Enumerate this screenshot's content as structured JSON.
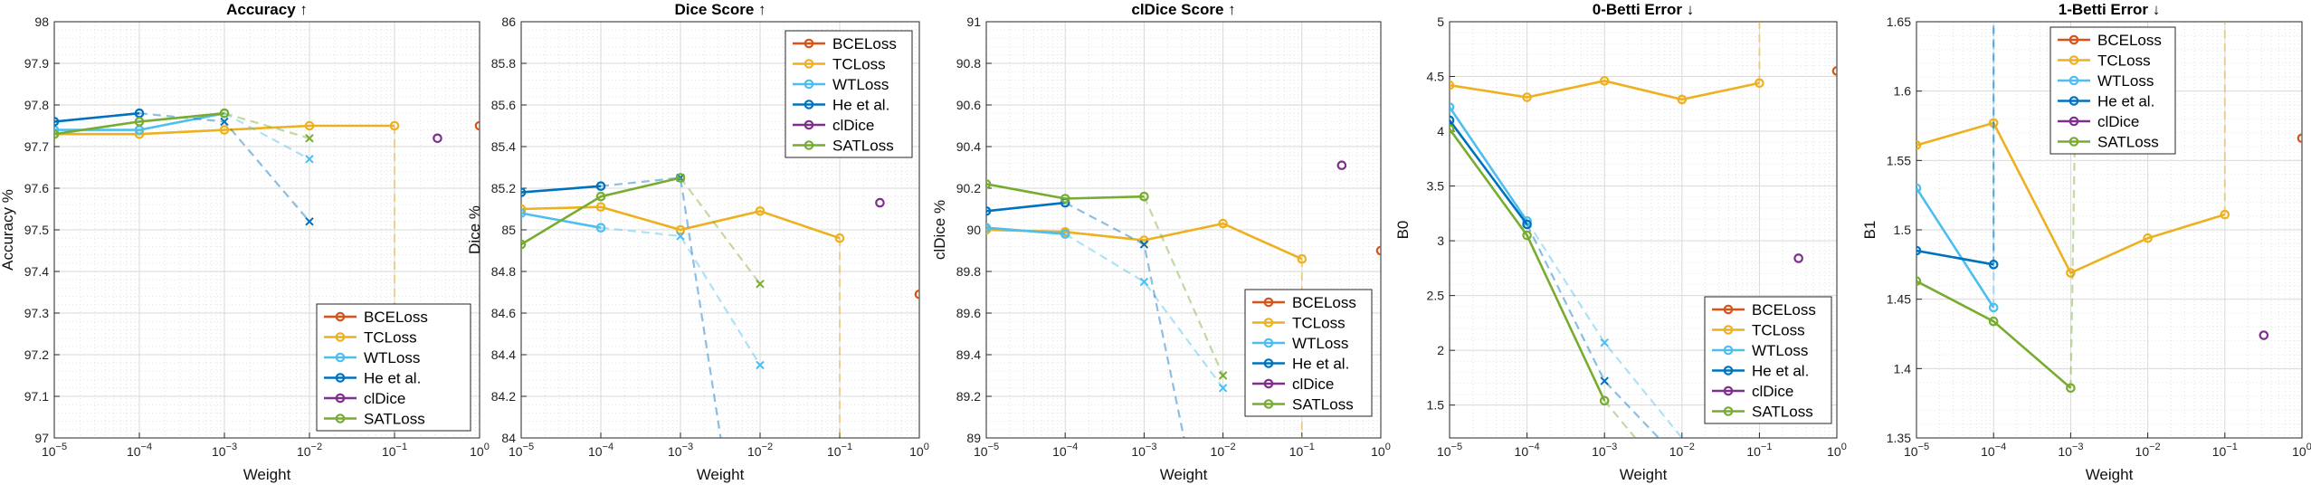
{
  "figure": {
    "xlabel": "Weight",
    "colors": {
      "BCELoss": "#D95319",
      "TCLoss": "#EDB120",
      "WTLoss": "#4DBEEE",
      "He et al.": "#0072BD",
      "clDice": "#7E2F8E",
      "SATLoss": "#77AC30"
    }
  },
  "chart_data": [
    {
      "type": "line",
      "title": "Accuracy ↑",
      "xlabel": "Weight",
      "ylabel": "Accuracy %",
      "xscale": "log",
      "xlim": [
        1e-05,
        1
      ],
      "ylim": [
        97,
        98
      ],
      "yticks": [
        97,
        97.1,
        97.2,
        97.3,
        97.4,
        97.5,
        97.6,
        97.7,
        97.8,
        97.9,
        98
      ],
      "grid": true,
      "legend": "bottom-right",
      "series": [
        {
          "name": "BCELoss",
          "points": [
            [
              1,
              97.75
            ]
          ]
        },
        {
          "name": "TCLoss",
          "points": [
            [
              1e-05,
              97.73
            ],
            [
              0.0001,
              97.73
            ],
            [
              0.001,
              97.74
            ],
            [
              0.01,
              97.75
            ],
            [
              0.1,
              97.75
            ]
          ],
          "collapse": [
            [
              0.1,
              97.75
            ],
            [
              0.1,
              97.0
            ]
          ]
        },
        {
          "name": "WTLoss",
          "points": [
            [
              1e-05,
              97.74
            ],
            [
              0.0001,
              97.74
            ],
            [
              0.001,
              97.78
            ]
          ],
          "collapse": [
            [
              0.001,
              97.78
            ],
            [
              0.01,
              97.67
            ]
          ],
          "crosses": [
            [
              0.01,
              97.67
            ]
          ]
        },
        {
          "name": "He et al.",
          "points": [
            [
              1e-05,
              97.76
            ],
            [
              0.0001,
              97.78
            ]
          ],
          "collapse": [
            [
              0.0001,
              97.78
            ],
            [
              0.001,
              97.76
            ],
            [
              0.01,
              97.52
            ]
          ],
          "crosses": [
            [
              0.001,
              97.76
            ],
            [
              0.01,
              97.52
            ]
          ]
        },
        {
          "name": "clDice",
          "points": [
            [
              0.32,
              97.72
            ]
          ]
        },
        {
          "name": "SATLoss",
          "points": [
            [
              1e-05,
              97.73
            ],
            [
              0.0001,
              97.76
            ],
            [
              0.001,
              97.78
            ]
          ],
          "collapse": [
            [
              0.001,
              97.78
            ],
            [
              0.01,
              97.72
            ]
          ],
          "crosses": [
            [
              0.01,
              97.72
            ]
          ]
        }
      ]
    },
    {
      "type": "line",
      "title": "Dice Score ↑",
      "xlabel": "Weight",
      "ylabel": "Dice %",
      "xscale": "log",
      "xlim": [
        1e-05,
        1
      ],
      "ylim": [
        84,
        86
      ],
      "yticks": [
        84,
        84.2,
        84.4,
        84.6,
        84.8,
        85,
        85.2,
        85.4,
        85.6,
        85.8,
        86
      ],
      "grid": true,
      "legend": "top-right",
      "series": [
        {
          "name": "BCELoss",
          "points": [
            [
              1,
              84.69
            ]
          ]
        },
        {
          "name": "TCLoss",
          "points": [
            [
              1e-05,
              85.1
            ],
            [
              0.0001,
              85.11
            ],
            [
              0.001,
              85.0
            ],
            [
              0.01,
              85.09
            ],
            [
              0.1,
              84.96
            ]
          ],
          "collapse": [
            [
              0.1,
              84.96
            ],
            [
              0.1,
              84.0
            ]
          ]
        },
        {
          "name": "WTLoss",
          "points": [
            [
              1e-05,
              85.08
            ],
            [
              0.0001,
              85.01
            ]
          ],
          "collapse": [
            [
              0.0001,
              85.01
            ],
            [
              0.001,
              84.97
            ],
            [
              0.01,
              84.35
            ]
          ],
          "crosses": [
            [
              0.001,
              84.97
            ],
            [
              0.01,
              84.35
            ]
          ]
        },
        {
          "name": "He et al.",
          "points": [
            [
              1e-05,
              85.18
            ],
            [
              0.0001,
              85.21
            ]
          ],
          "collapse": [
            [
              0.0001,
              85.21
            ],
            [
              0.001,
              85.25
            ],
            [
              0.0032,
              84.0
            ]
          ],
          "crosses": [
            [
              0.001,
              85.25
            ]
          ]
        },
        {
          "name": "clDice",
          "points": [
            [
              0.32,
              85.13
            ]
          ]
        },
        {
          "name": "SATLoss",
          "points": [
            [
              1e-05,
              84.93
            ],
            [
              0.0001,
              85.16
            ],
            [
              0.001,
              85.25
            ]
          ],
          "collapse": [
            [
              0.001,
              85.25
            ],
            [
              0.01,
              84.74
            ]
          ],
          "crosses": [
            [
              0.01,
              84.74
            ]
          ]
        }
      ]
    },
    {
      "type": "line",
      "title": "clDice Score ↑",
      "xlabel": "Weight",
      "ylabel": "clDice %",
      "xscale": "log",
      "xlim": [
        1e-05,
        1
      ],
      "ylim": [
        89,
        91
      ],
      "yticks": [
        89,
        89.2,
        89.4,
        89.6,
        89.8,
        90,
        90.2,
        90.4,
        90.6,
        90.8,
        91
      ],
      "grid": true,
      "legend": "bottom-right",
      "series": [
        {
          "name": "BCELoss",
          "points": [
            [
              1,
              89.9
            ]
          ]
        },
        {
          "name": "TCLoss",
          "points": [
            [
              1e-05,
              90.0
            ],
            [
              0.0001,
              89.99
            ],
            [
              0.001,
              89.95
            ],
            [
              0.01,
              90.03
            ],
            [
              0.1,
              89.86
            ]
          ],
          "collapse": [
            [
              0.1,
              89.86
            ],
            [
              0.1,
              89.0
            ]
          ]
        },
        {
          "name": "WTLoss",
          "points": [
            [
              1e-05,
              90.01
            ],
            [
              0.0001,
              89.98
            ]
          ],
          "collapse": [
            [
              0.0001,
              89.98
            ],
            [
              0.001,
              89.75
            ],
            [
              0.01,
              89.24
            ]
          ],
          "crosses": [
            [
              0.001,
              89.75
            ],
            [
              0.01,
              89.24
            ]
          ]
        },
        {
          "name": "He et al.",
          "points": [
            [
              1e-05,
              90.09
            ],
            [
              0.0001,
              90.13
            ]
          ],
          "collapse": [
            [
              0.0001,
              90.13
            ],
            [
              0.001,
              89.93
            ],
            [
              0.0032,
              89.0
            ]
          ],
          "crosses": [
            [
              0.001,
              89.93
            ]
          ]
        },
        {
          "name": "clDice",
          "points": [
            [
              0.32,
              90.31
            ]
          ]
        },
        {
          "name": "SATLoss",
          "points": [
            [
              1e-05,
              90.22
            ],
            [
              0.0001,
              90.15
            ],
            [
              0.001,
              90.16
            ]
          ],
          "collapse": [
            [
              0.001,
              90.16
            ],
            [
              0.01,
              89.3
            ]
          ],
          "crosses": [
            [
              0.01,
              89.3
            ]
          ]
        }
      ]
    },
    {
      "type": "line",
      "title": "0-Betti Error ↓",
      "xlabel": "Weight",
      "ylabel": "B0",
      "xscale": "log",
      "xlim": [
        1e-05,
        1
      ],
      "ylim": [
        1.2,
        5
      ],
      "yticks": [
        1.5,
        2,
        2.5,
        3,
        3.5,
        4,
        4.5,
        5
      ],
      "grid": true,
      "legend": "bottom-right",
      "series": [
        {
          "name": "BCELoss",
          "points": [
            [
              1,
              4.55
            ]
          ]
        },
        {
          "name": "TCLoss",
          "points": [
            [
              1e-05,
              4.42
            ],
            [
              0.0001,
              4.31
            ],
            [
              0.001,
              4.46
            ],
            [
              0.01,
              4.29
            ],
            [
              0.1,
              4.44
            ]
          ],
          "collapse": [
            [
              0.1,
              4.44
            ],
            [
              0.1,
              5.0
            ]
          ]
        },
        {
          "name": "WTLoss",
          "points": [
            [
              1e-05,
              4.22
            ],
            [
              0.0001,
              3.18
            ]
          ],
          "collapse": [
            [
              0.0001,
              3.18
            ],
            [
              0.001,
              2.07
            ],
            [
              0.01,
              1.2
            ]
          ],
          "crosses": [
            [
              0.001,
              2.07
            ]
          ]
        },
        {
          "name": "He et al.",
          "points": [
            [
              1e-05,
              4.1
            ],
            [
              0.0001,
              3.15
            ]
          ],
          "collapse": [
            [
              0.0001,
              3.15
            ],
            [
              0.001,
              1.72
            ],
            [
              0.005,
              1.2
            ]
          ],
          "crosses": [
            [
              0.001,
              1.72
            ]
          ]
        },
        {
          "name": "clDice",
          "points": [
            [
              0.32,
              2.84
            ]
          ]
        },
        {
          "name": "SATLoss",
          "points": [
            [
              1e-05,
              4.02
            ],
            [
              0.0001,
              3.05
            ],
            [
              0.001,
              1.54
            ]
          ],
          "collapse": [
            [
              0.001,
              1.54
            ],
            [
              0.0025,
              1.2
            ]
          ]
        }
      ]
    },
    {
      "type": "line",
      "title": "1-Betti Error ↓",
      "xlabel": "Weight",
      "ylabel": "B1",
      "xscale": "log",
      "xlim": [
        1e-05,
        1
      ],
      "ylim": [
        1.35,
        1.65
      ],
      "yticks": [
        1.35,
        1.4,
        1.45,
        1.5,
        1.55,
        1.6,
        1.65
      ],
      "grid": true,
      "legend": "top-left",
      "series": [
        {
          "name": "BCELoss",
          "points": [
            [
              1,
              1.566
            ]
          ]
        },
        {
          "name": "TCLoss",
          "points": [
            [
              1e-05,
              1.561
            ],
            [
              0.0001,
              1.577
            ],
            [
              0.001,
              1.469
            ],
            [
              0.01,
              1.494
            ],
            [
              0.1,
              1.511
            ]
          ],
          "collapse": [
            [
              0.1,
              1.511
            ],
            [
              0.1,
              1.65
            ]
          ]
        },
        {
          "name": "WTLoss",
          "points": [
            [
              1e-05,
              1.53
            ],
            [
              0.0001,
              1.444
            ]
          ],
          "collapse": [
            [
              0.0001,
              1.444
            ],
            [
              0.0001,
              1.65
            ]
          ]
        },
        {
          "name": "He et al.",
          "points": [
            [
              1e-05,
              1.485
            ],
            [
              0.0001,
              1.475
            ]
          ],
          "collapse": [
            [
              0.0001,
              1.475
            ],
            [
              0.0001,
              1.65
            ]
          ]
        },
        {
          "name": "clDice",
          "points": [
            [
              0.32,
              1.424
            ]
          ]
        },
        {
          "name": "SATLoss",
          "points": [
            [
              1e-05,
              1.463
            ],
            [
              0.0001,
              1.434
            ],
            [
              0.001,
              1.386
            ]
          ],
          "collapse": [
            [
              0.001,
              1.386
            ],
            [
              0.0012,
              1.65
            ]
          ]
        }
      ]
    }
  ]
}
